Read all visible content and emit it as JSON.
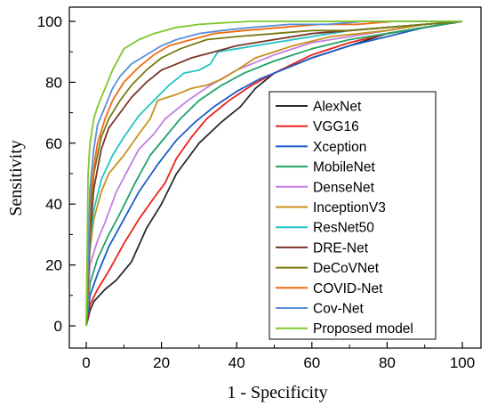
{
  "chart_data": {
    "type": "line",
    "xlabel": "1 - Specificity",
    "ylabel": "Sensitivity",
    "xlim": [
      0,
      100
    ],
    "ylim": [
      0,
      105
    ],
    "x_ticks": [
      0,
      20,
      40,
      60,
      80,
      100
    ],
    "y_ticks": [
      0,
      20,
      40,
      60,
      80,
      100
    ],
    "grid": false,
    "legend_position": "bottom-right",
    "series": [
      {
        "name": "AlexNet",
        "color": "#2b2b2b",
        "x": [
          0,
          1,
          2,
          5,
          8,
          12,
          16,
          20,
          24,
          30,
          36,
          41,
          45,
          50,
          60,
          70,
          80,
          90,
          100
        ],
        "y": [
          0,
          5,
          8,
          12,
          15,
          21,
          32,
          40,
          50,
          60,
          67,
          72,
          78,
          83,
          88,
          92,
          96,
          98,
          100
        ]
      },
      {
        "name": "VGG16",
        "color": "#e8231d",
        "x": [
          0,
          1,
          3,
          6,
          10,
          14,
          18,
          21,
          24,
          28,
          32,
          38,
          44,
          50,
          60,
          70,
          80,
          90,
          100
        ],
        "y": [
          0,
          7,
          12,
          18,
          27,
          35,
          42,
          47,
          55,
          62,
          68,
          74,
          79,
          83,
          89,
          93,
          96,
          98,
          100
        ]
      },
      {
        "name": "Xception",
        "color": "#1e5cc8",
        "x": [
          0,
          1,
          3,
          6,
          10,
          14,
          19,
          24,
          29,
          34,
          40,
          46,
          52,
          60,
          70,
          80,
          90,
          100
        ],
        "y": [
          0,
          10,
          17,
          26,
          35,
          44,
          53,
          61,
          67,
          72,
          77,
          81,
          84,
          88,
          92,
          95,
          98,
          100
        ]
      },
      {
        "name": "MobileNet",
        "color": "#1fa366",
        "x": [
          0,
          1,
          3,
          6,
          9,
          13,
          17,
          21,
          25,
          30,
          36,
          42,
          50,
          60,
          70,
          80,
          90,
          100
        ],
        "y": [
          0,
          14,
          22,
          30,
          37,
          47,
          56,
          62,
          68,
          74,
          79,
          83,
          87,
          91,
          94,
          96,
          98,
          100
        ]
      },
      {
        "name": "DenseNet",
        "color": "#c27ee0",
        "x": [
          0,
          1,
          3,
          5,
          8,
          11,
          14,
          18,
          21,
          24,
          27,
          33,
          40,
          50,
          60,
          70,
          80,
          90,
          100
        ],
        "y": [
          0,
          20,
          28,
          34,
          44,
          51,
          58,
          63,
          68,
          71,
          74,
          79,
          84,
          89,
          93,
          95,
          97,
          99,
          100
        ]
      },
      {
        "name": "InceptionV3",
        "color": "#c8921e",
        "x": [
          0,
          1,
          2,
          4,
          6,
          10,
          14,
          17,
          19,
          24,
          28,
          32,
          36,
          40,
          45,
          55,
          65,
          80,
          90,
          100
        ],
        "y": [
          0,
          25,
          35,
          44,
          50,
          56,
          63,
          68,
          74,
          76,
          78,
          79,
          81,
          84,
          88,
          92,
          95,
          97,
          99,
          100
        ]
      },
      {
        "name": "ResNet50",
        "color": "#22c3c3",
        "x": [
          0,
          1,
          2,
          4,
          7,
          10,
          14,
          18,
          22,
          26,
          30,
          33,
          35,
          40,
          50,
          60,
          70,
          80,
          90,
          100
        ],
        "y": [
          0,
          28,
          38,
          48,
          56,
          62,
          69,
          74,
          79,
          83,
          84,
          86,
          90,
          91,
          93,
          95,
          97,
          98,
          99,
          100
        ]
      },
      {
        "name": "DRE-Net",
        "color": "#7a3428",
        "x": [
          0,
          1,
          2,
          4,
          6,
          9,
          12,
          16,
          20,
          24,
          28,
          34,
          40,
          50,
          60,
          70,
          80,
          90,
          100
        ],
        "y": [
          0,
          30,
          45,
          58,
          65,
          70,
          75,
          80,
          84,
          86,
          88,
          90,
          92,
          94,
          96,
          97,
          98,
          99,
          100
        ]
      },
      {
        "name": "DeCoVNet",
        "color": "#7a7a12",
        "x": [
          0,
          1,
          2,
          4,
          6,
          9,
          12,
          16,
          20,
          25,
          32,
          40,
          50,
          60,
          70,
          80,
          90,
          100
        ],
        "y": [
          0,
          35,
          50,
          62,
          68,
          74,
          79,
          84,
          88,
          91,
          94,
          95,
          96,
          97,
          97,
          98,
          99,
          100
        ]
      },
      {
        "name": "COVID-Net",
        "color": "#f06a12",
        "x": [
          0,
          1,
          2,
          3,
          5,
          7,
          10,
          14,
          18,
          22,
          28,
          34,
          42,
          52,
          62,
          72,
          82,
          90,
          100
        ],
        "y": [
          0,
          40,
          52,
          60,
          68,
          74,
          80,
          85,
          89,
          92,
          94,
          96,
          97,
          98,
          99,
          99,
          100,
          100,
          100
        ]
      },
      {
        "name": "Cov-Net",
        "color": "#5a8fd8",
        "x": [
          0,
          1,
          2,
          3,
          5,
          7,
          9,
          12,
          16,
          20,
          24,
          30,
          36,
          44,
          54,
          64,
          74,
          84,
          100
        ],
        "y": [
          0,
          45,
          58,
          66,
          72,
          78,
          82,
          86,
          89,
          92,
          94,
          96,
          97,
          98,
          99,
          99,
          100,
          100,
          100
        ]
      },
      {
        "name": "Proposed model",
        "color": "#7ec82a",
        "x": [
          0,
          0.5,
          1,
          2,
          3,
          5,
          7,
          10,
          14,
          18,
          24,
          30,
          36,
          44,
          50,
          60,
          70,
          80,
          90,
          100
        ],
        "y": [
          0,
          50,
          60,
          68,
          72,
          78,
          84,
          91,
          94,
          96,
          98,
          99,
          99.5,
          100,
          100,
          100,
          100,
          100,
          100,
          100
        ]
      }
    ]
  }
}
